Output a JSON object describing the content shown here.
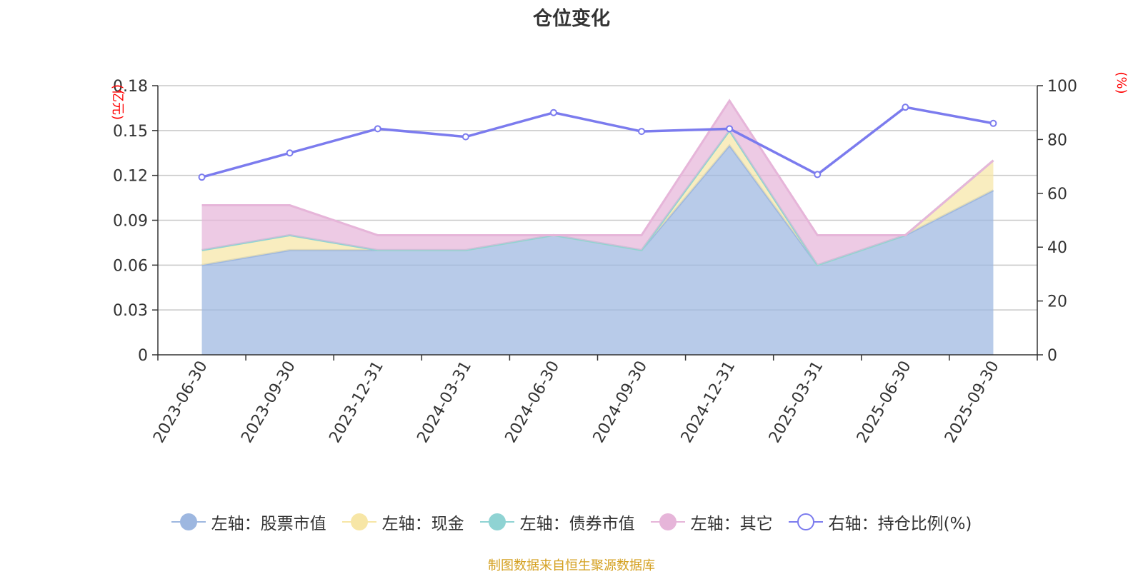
{
  "chart_data": {
    "type": "area",
    "title": "仓位变化",
    "left_axis_unit": "(亿元)",
    "right_axis_unit": "(%)",
    "categories": [
      "2023-06-30",
      "2023-09-30",
      "2023-12-31",
      "2024-03-31",
      "2024-06-30",
      "2024-09-30",
      "2024-12-31",
      "2025-03-31",
      "2025-06-30",
      "2025-09-30"
    ],
    "left_ylim": [
      0,
      0.18
    ],
    "left_ticks": [
      "0",
      "0.03",
      "0.06",
      "0.09",
      "0.12",
      "0.15",
      "0.18"
    ],
    "right_ylim": [
      0,
      100
    ],
    "right_ticks": [
      "0",
      "20",
      "40",
      "60",
      "80",
      "100"
    ],
    "stacked": true,
    "series": [
      {
        "name": "左轴：股票市值",
        "axis": "left",
        "color": "#9db7e0",
        "values": [
          0.06,
          0.07,
          0.07,
          0.07,
          0.08,
          0.07,
          0.14,
          0.06,
          0.08,
          0.11
        ]
      },
      {
        "name": "左轴：现金",
        "axis": "left",
        "color": "#f7e6a6",
        "values": [
          0.01,
          0.01,
          0.0,
          0.0,
          0.0,
          0.0,
          0.01,
          0.0,
          0.0,
          0.02
        ]
      },
      {
        "name": "左轴：债券市值",
        "axis": "left",
        "color": "#8fd3d3",
        "values": [
          0,
          0,
          0,
          0,
          0,
          0,
          0,
          0,
          0,
          0
        ]
      },
      {
        "name": "左轴：其它",
        "axis": "left",
        "color": "#e6b5d9",
        "values": [
          0.03,
          0.02,
          0.01,
          0.01,
          0.0,
          0.01,
          0.02,
          0.02,
          0.0,
          0.0
        ]
      },
      {
        "name": "右轴：持仓比例(%)",
        "axis": "right",
        "color": "#7b7bee",
        "values": [
          66,
          75,
          84,
          81,
          90,
          83,
          84,
          67,
          92,
          86
        ]
      }
    ],
    "legend_position": "bottom-center"
  },
  "footer": "制图数据来自恒生聚源数据库"
}
